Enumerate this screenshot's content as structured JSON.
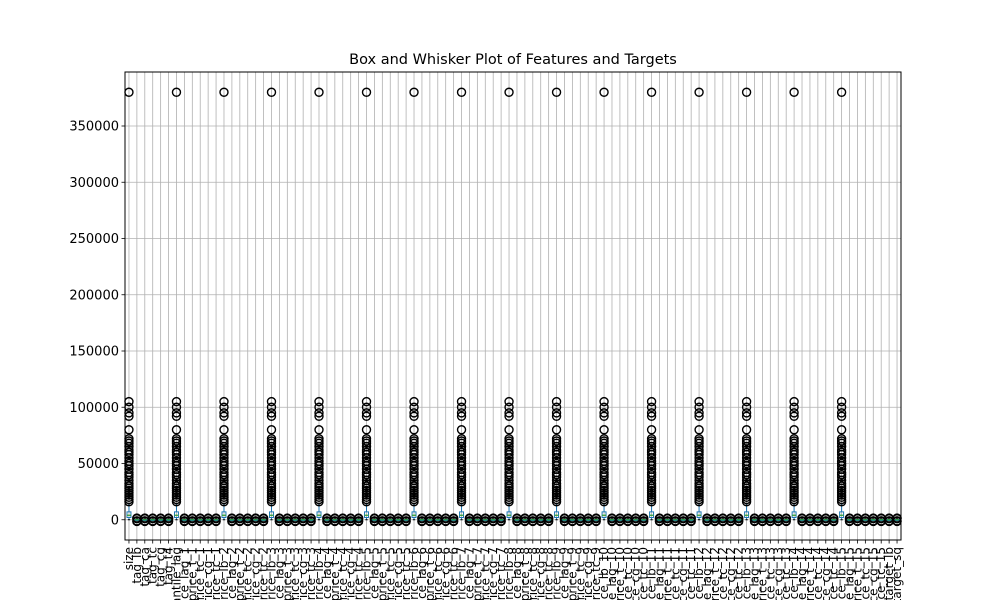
{
  "chart_data": {
    "type": "box",
    "title": "Box and Whisker Plot of Features and Targets",
    "xlabel": "",
    "ylabel": "",
    "ylim": [
      -18000,
      398000
    ],
    "y_ticks": [
      0,
      50000,
      100000,
      150000,
      200000,
      250000,
      300000,
      350000
    ],
    "grid": true,
    "legend": "none",
    "colors": {
      "box": "#1f77b4",
      "median": "#2ca02c",
      "outlier": "#000000",
      "grid": "#b0b0b0"
    },
    "categories": [
      "size",
      "tag_lb",
      "tag_ca",
      "tag_tc",
      "tag_cg",
      "tag_t4",
      "quantile_lag",
      "price_lag_1",
      "price_t_1",
      "price_tc_1",
      "price_cg_1",
      "price_tc_1",
      "price_lb_2",
      "price_lag_2",
      "price_t_2",
      "price_tc_2",
      "price_cg_2",
      "price_tc_2",
      "price_lb_3",
      "price_lag_3",
      "price_t_3",
      "price_tc_3",
      "price_cg_3",
      "price_tc_3",
      "price_lb_4",
      "price_lag_4",
      "price_t_4",
      "price_tc_4",
      "price_cg_4",
      "price_tc_4",
      "price_lb_5",
      "price_lag_5",
      "price_t_5",
      "price_tc_5",
      "price_cg_5",
      "price_tc_5",
      "price_lb_6",
      "price_lag_6",
      "price_t_6",
      "price_tc_6",
      "price_cg_6",
      "price_tc_6",
      "price_lb_7",
      "price_lag_7",
      "price_t_7",
      "price_tc_7",
      "price_cg_7",
      "price_tc_7",
      "price_lb_8",
      "price_lag_8",
      "price_t_8",
      "price_tc_8",
      "price_cg_8",
      "price_tc_8",
      "price_lb_9",
      "price_lag_9",
      "price_t_9",
      "price_tc_9",
      "price_cg_9",
      "price_tc_9",
      "price_lb_10",
      "price_lag_10",
      "price_t_10",
      "price_tc_10",
      "price_cg_10",
      "price_tc_10",
      "price_lb_11",
      "price_lag_11",
      "price_t_11",
      "price_tc_11",
      "price_cg_11",
      "price_tc_11",
      "price_lb_12",
      "price_lag_12",
      "price_t_12",
      "price_tc_12",
      "price_cg_12",
      "price_tc_12",
      "price_lb_13",
      "price_lag_13",
      "price_t_13",
      "price_tc_13",
      "price_cg_13",
      "price_tc_13",
      "price_lb_14",
      "price_lag_14",
      "price_t_14",
      "price_tc_14",
      "price_cg_14",
      "price_tc_14",
      "price_lb_15",
      "price_lag_15",
      "price_t_15",
      "price_tc_15",
      "price_cg_15",
      "price_tc_15",
      "target_lb",
      "target_sq"
    ],
    "large_indices": [
      0,
      6,
      12,
      18,
      24,
      30,
      36,
      42,
      48,
      54,
      60,
      66,
      72,
      78,
      84,
      90
    ],
    "large_box": {
      "whisker_low": 0,
      "q1": 2000,
      "median": 4000,
      "q3": 7000,
      "whisker_high": 14000,
      "outliers": [
        16000,
        18000,
        20000,
        22000,
        24000,
        26000,
        28000,
        30000,
        32000,
        35000,
        38000,
        40000,
        42000,
        45000,
        48000,
        50000,
        52000,
        55000,
        58000,
        60000,
        62000,
        65000,
        68000,
        70000,
        72000,
        80000,
        92000,
        95000,
        100000,
        105000,
        380000
      ]
    },
    "small_box": {
      "whisker_low": -800,
      "q1": -200,
      "median": 0,
      "q3": 200,
      "whisker_high": 800,
      "outliers": [
        -1500,
        -1000,
        1000,
        1500
      ]
    }
  }
}
